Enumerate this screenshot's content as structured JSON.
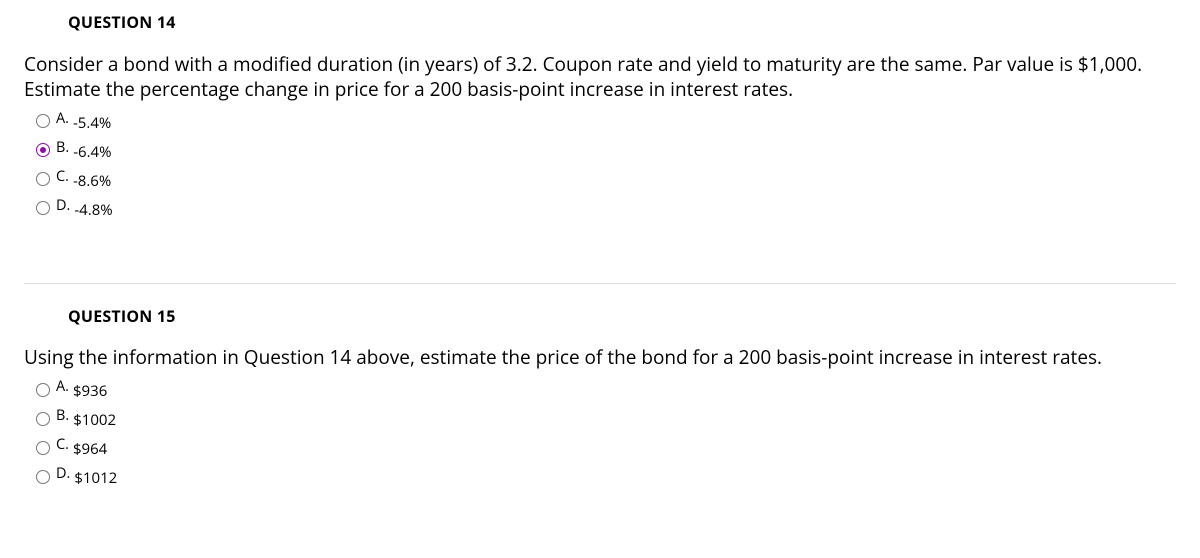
{
  "questions": [
    {
      "header": "QUESTION 14",
      "prompt_lines": [
        "Consider a bond with a modified duration (in years) of 3.2. Coupon rate and yield to maturity are the same. Par value is $1,000.",
        "Estimate the percentage change in price for a 200 basis-point increase in interest rates."
      ],
      "options": [
        {
          "letter": "A.",
          "value": "-5.4%",
          "selected": false
        },
        {
          "letter": "B.",
          "value": "-6.4%",
          "selected": true
        },
        {
          "letter": "C.",
          "value": "-8.6%",
          "selected": false
        },
        {
          "letter": "D.",
          "value": "-4.8%",
          "selected": false
        }
      ]
    },
    {
      "header": "QUESTION 15",
      "prompt_lines": [
        "Using the information in Question 14 above, estimate the price of the bond for a 200 basis-point increase in interest rates."
      ],
      "options": [
        {
          "letter": "A.",
          "value": "$936",
          "selected": false
        },
        {
          "letter": "B.",
          "value": "$1002",
          "selected": false
        },
        {
          "letter": "C.",
          "value": "$964",
          "selected": false
        },
        {
          "letter": "D.",
          "value": "$1012",
          "selected": false
        }
      ]
    }
  ]
}
